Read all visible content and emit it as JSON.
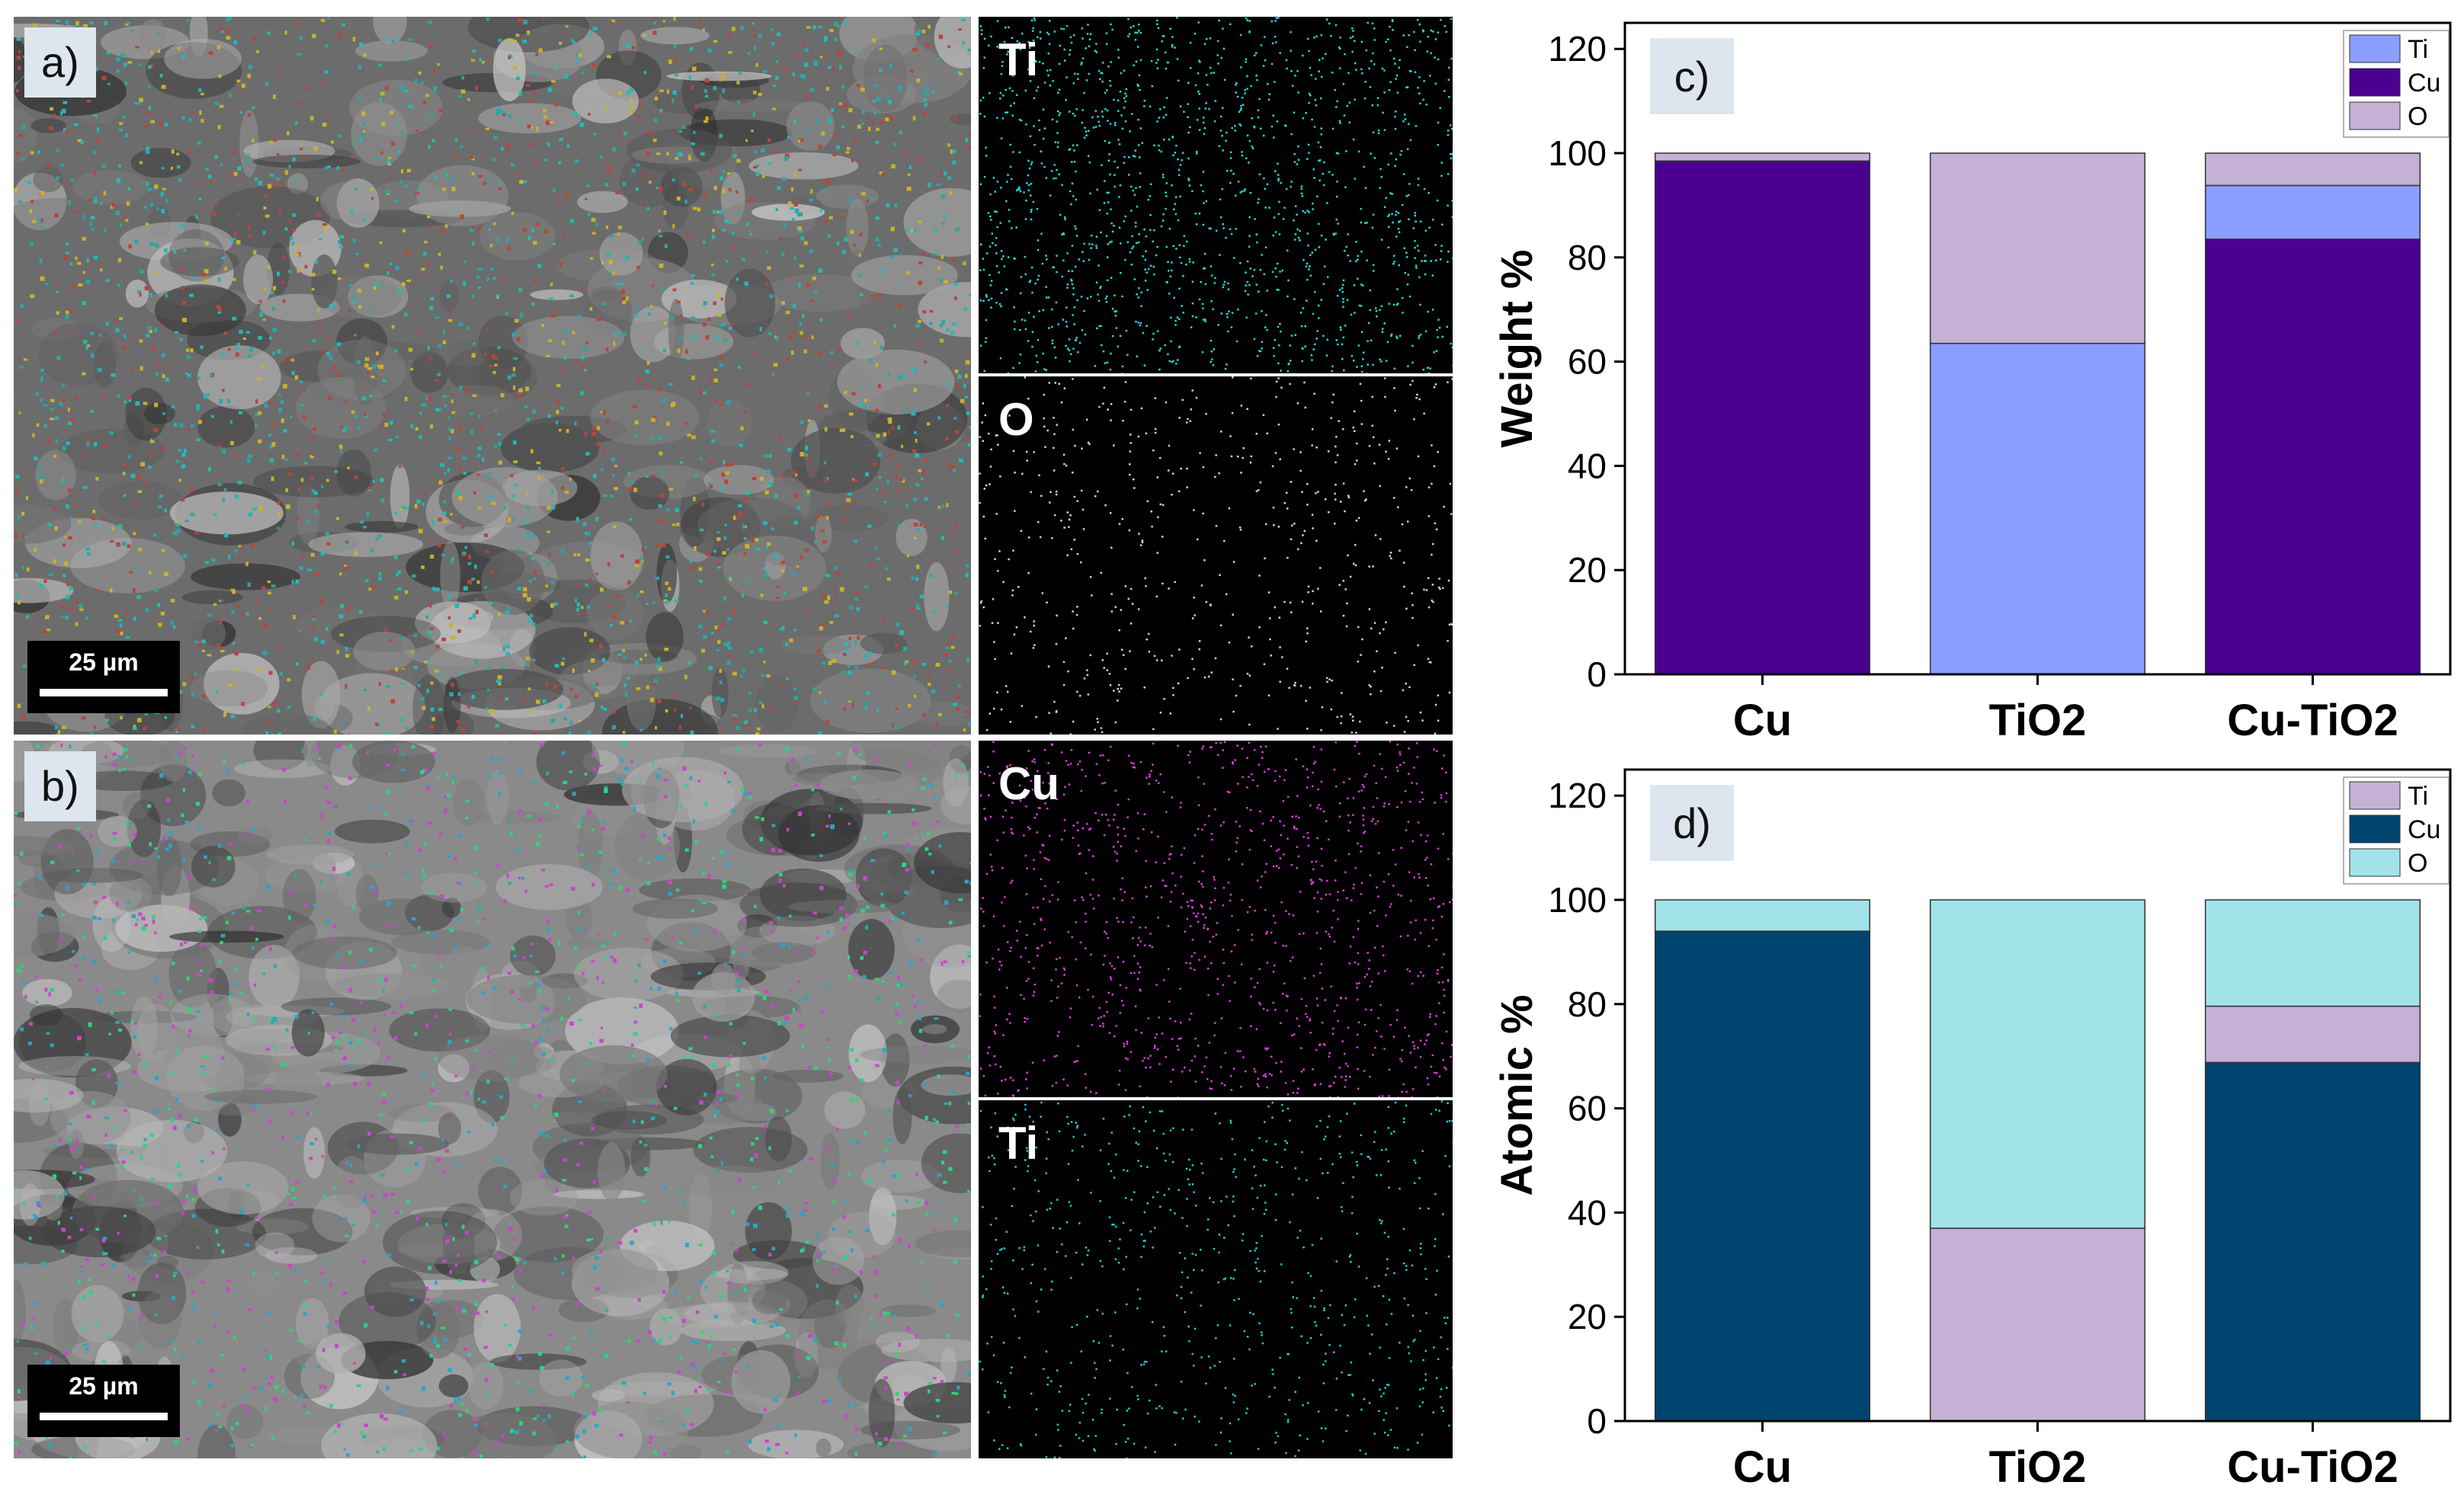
{
  "panels": {
    "a": {
      "label": "a)",
      "scalebar": "25 µm",
      "tone": "#6c6c6c",
      "dot_colors": [
        "#23b9b6",
        "#2aa6a8",
        "#c8b22a",
        "#b9453c"
      ]
    },
    "b": {
      "label": "b)",
      "scalebar": "25 µm",
      "tone": "#8a8a8a",
      "dot_colors": [
        "#2fd37b",
        "#c946c9",
        "#2aa6c2"
      ]
    },
    "maps": [
      {
        "label": "Ti",
        "color": "#2ad6d8"
      },
      {
        "label": "O",
        "color": "#d9d3b8"
      },
      {
        "label": "Cu",
        "color": "#e03ce0"
      },
      {
        "label": "Ti",
        "color": "#25c9d2"
      }
    ]
  },
  "chart_data": [
    {
      "type": "bar",
      "stacked": true,
      "panel_label": "c)",
      "ylabel": "Weight %",
      "xlabel": "",
      "categories": [
        "Cu",
        "TiO2",
        "Cu-TiO2"
      ],
      "ylim": [
        0,
        125
      ],
      "yticks": [
        0,
        20,
        40,
        60,
        80,
        100,
        120
      ],
      "stack_order": [
        "Cu",
        "Ti",
        "O"
      ],
      "series": [
        {
          "name": "Ti",
          "values": [
            0,
            63.5,
            10.3
          ],
          "color": "#8a9eff"
        },
        {
          "name": "Cu",
          "values": [
            98.5,
            0,
            83.5
          ],
          "color": "#4b0091"
        },
        {
          "name": "O",
          "values": [
            1.5,
            36.5,
            6.2
          ],
          "color": "#c6b1d6"
        }
      ],
      "legend_position": "top-right",
      "grid": false
    },
    {
      "type": "bar",
      "stacked": true,
      "panel_label": "d)",
      "ylabel": "Atomic %",
      "xlabel": "",
      "categories": [
        "Cu",
        "TiO2",
        "Cu-TiO2"
      ],
      "ylim": [
        0,
        125
      ],
      "yticks": [
        0,
        20,
        40,
        60,
        80,
        100,
        120
      ],
      "stack_order": [
        "Cu",
        "Ti",
        "O"
      ],
      "series": [
        {
          "name": "Ti",
          "values": [
            0,
            37,
            10.8
          ],
          "color": "#c6b1d6"
        },
        {
          "name": "Cu",
          "values": [
            94,
            0,
            68.8
          ],
          "color": "#00456f"
        },
        {
          "name": "O",
          "values": [
            6,
            63,
            20.4
          ],
          "color": "#a2e3ea"
        }
      ],
      "legend_position": "top-right",
      "grid": false
    }
  ]
}
